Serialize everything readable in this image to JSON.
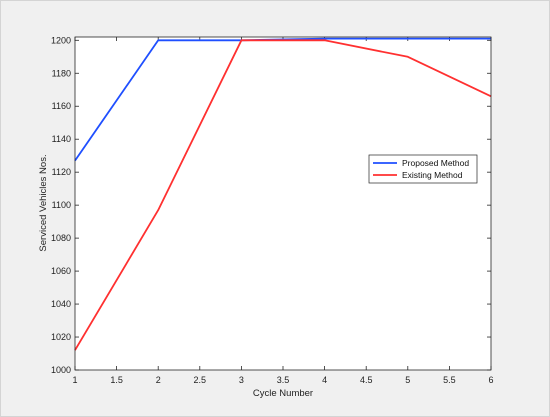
{
  "chart_data": {
    "type": "line",
    "x": [
      1,
      2,
      3,
      4,
      5,
      6
    ],
    "series": [
      {
        "name": "Proposed Method",
        "color": "#1f4fff",
        "values": [
          1127,
          1200,
          1200,
          1201,
          1201,
          1201
        ]
      },
      {
        "name": "Existing Method",
        "color": "#ff3030",
        "values": [
          1012,
          1097,
          1200,
          1200,
          1190,
          1166
        ]
      }
    ],
    "xlabel": "Cycle Number",
    "ylabel": "Serviced Vehicles Nos.",
    "xlim": [
      1,
      6
    ],
    "ylim": [
      1000,
      1202
    ],
    "xticks": [
      1,
      1.5,
      2,
      2.5,
      3,
      3.5,
      4,
      4.5,
      5,
      5.5,
      6
    ],
    "xtick_labels": [
      "1",
      "1.5",
      "2",
      "2.5",
      "3",
      "3.5",
      "4",
      "4.5",
      "5",
      "5.5",
      "6"
    ],
    "yticks": [
      1000,
      1020,
      1040,
      1060,
      1080,
      1100,
      1120,
      1140,
      1160,
      1180,
      1200
    ],
    "ytick_labels": [
      "1000",
      "1020",
      "1040",
      "1060",
      "1080",
      "1100",
      "1120",
      "1140",
      "1160",
      "1180",
      "1200"
    ],
    "grid": false,
    "legend_position": "right"
  }
}
